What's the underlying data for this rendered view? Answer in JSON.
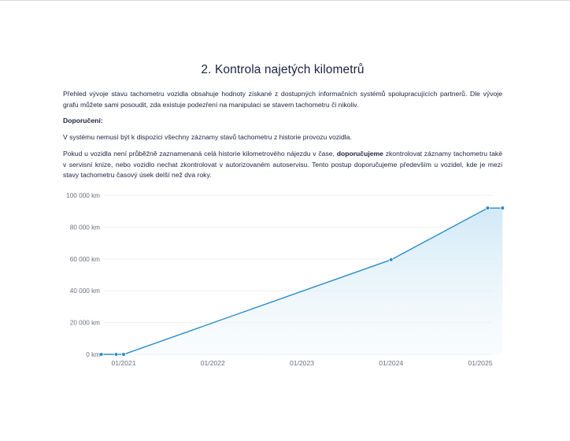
{
  "section": {
    "title": "2. Kontrola najetých kilometrů",
    "paragraph1": "Přehled vývoje stavu tachometru vozidla obsahuje hodnoty získané z dostupných informačních systémů spolupracujících partnerů. Dle vývoje grafu můžete sami posoudit, zda existuje podezření na manipulaci se stavem tachometru či nikoliv.",
    "recommendation_heading": "Doporučení:",
    "paragraph3": "V systému nemusí být k dispozici všechny záznamy stavů tachometru z historie provozu vozidla.",
    "paragraph4_part1": "Pokud u vozidla není průběžně zaznamenaná celá historie kilometrového nájezdu v čase, ",
    "paragraph4_bold": "doporučujeme",
    "paragraph4_part2": " zkontrolovat záznamy tachometru také v servisní knize, nebo vozidlo nechat zkontrolovat v autorizovaném autoservisu. Tento postup doporučujeme především u vozidel, kde je mezi stavy tachometru časový úsek delší než dva roky."
  },
  "chart_data": {
    "type": "area",
    "title": "",
    "xlabel": "",
    "ylabel": "",
    "ylim": [
      0,
      100000
    ],
    "y_ticks": [
      {
        "value": 100000,
        "label": "100 000 km"
      },
      {
        "value": 80000,
        "label": "80 000 km"
      },
      {
        "value": 60000,
        "label": "60 000 km"
      },
      {
        "value": 40000,
        "label": "40 000 km"
      },
      {
        "value": 20000,
        "label": "20 000 km"
      },
      {
        "value": 0,
        "label": "0 km"
      }
    ],
    "x_ticks": [
      {
        "date": "2021-01",
        "label": "01/2021"
      },
      {
        "date": "2022-01",
        "label": "01/2022"
      },
      {
        "date": "2023-01",
        "label": "01/2023"
      },
      {
        "date": "2024-01",
        "label": "01/2024"
      },
      {
        "date": "2025-01",
        "label": "01/2025"
      }
    ],
    "points": [
      {
        "date": "2020-10",
        "km": 0
      },
      {
        "date": "2020-12",
        "km": 0
      },
      {
        "date": "2021-01",
        "km": 0
      },
      {
        "date": "2024-01",
        "km": 59500
      },
      {
        "date": "2025-02",
        "km": 92000
      },
      {
        "date": "2025-04",
        "km": 92000
      }
    ],
    "grid": true,
    "colors": {
      "line": "#2a8cc7",
      "fill": "#d6ecf8",
      "grid": "#eceef2"
    }
  }
}
